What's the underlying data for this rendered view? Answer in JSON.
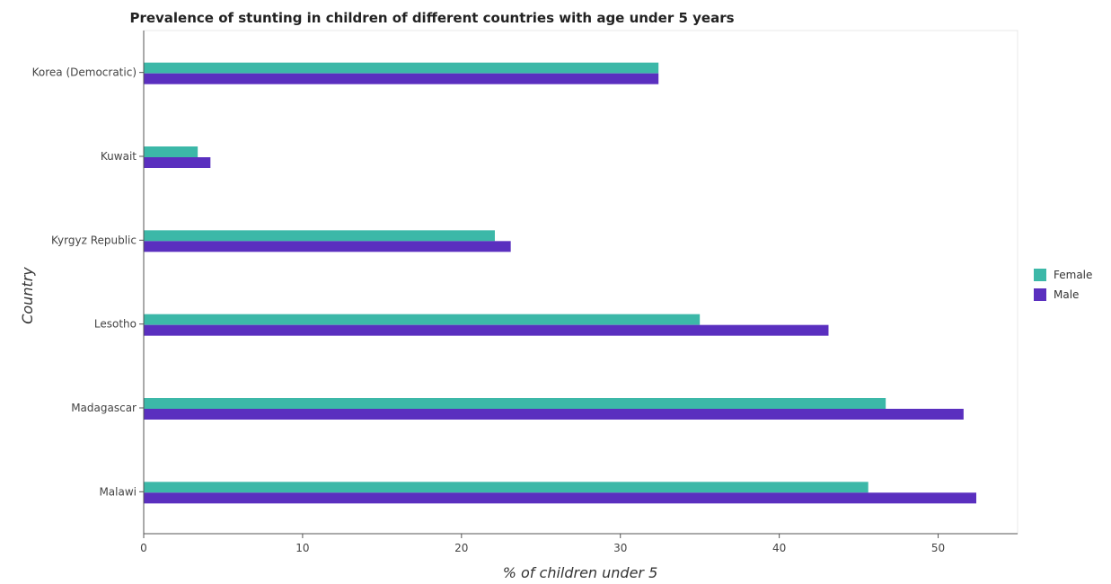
{
  "chart_data": {
    "type": "bar",
    "orientation": "horizontal",
    "title": "Prevalence of stunting in children of different countries with age under 5 years",
    "xlabel": "% of children under 5",
    "ylabel": "Country",
    "xlim": [
      0,
      55
    ],
    "xticks": [
      0,
      10,
      20,
      30,
      40,
      50
    ],
    "grid": false,
    "legend_position": "right",
    "categories": [
      "Korea (Democratic)",
      "Kuwait",
      "Kyrgyz Republic",
      "Lesotho",
      "Madagascar",
      "Malawi"
    ],
    "series": [
      {
        "name": "Female",
        "color": "#3cb8a8",
        "values": [
          32.4,
          3.4,
          22.1,
          35.0,
          46.7,
          45.6
        ]
      },
      {
        "name": "Male",
        "color": "#5a2fbf",
        "values": [
          32.4,
          4.2,
          23.1,
          43.1,
          51.6,
          52.4
        ]
      }
    ]
  }
}
